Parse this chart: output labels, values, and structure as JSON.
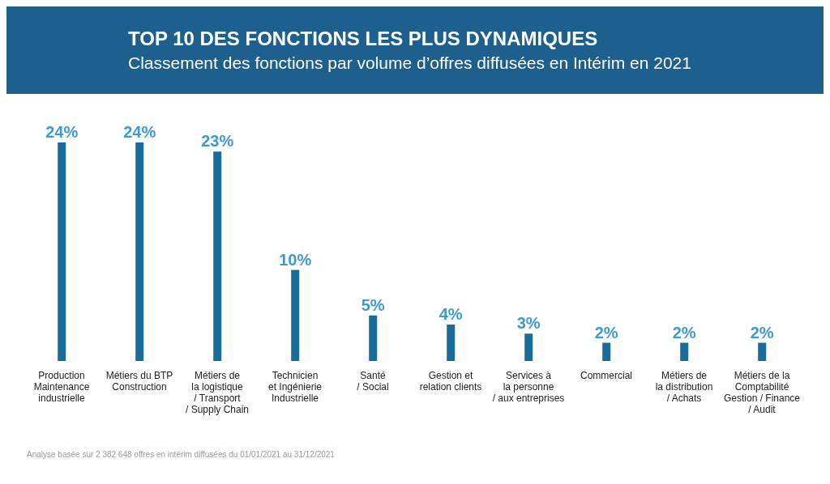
{
  "chart_data": {
    "type": "bar",
    "title": "TOP 10 DES FONCTIONS LES PLUS DYNAMIQUES",
    "subtitle": "Classement des fonctions par volume d’offres diffusées en Intérim en 2021",
    "categories": [
      "Production\nMaintenance\nindustrielle",
      "Métiers du BTP\nConstruction",
      "Métiers de\nla logistique\n/ Transport\n/ Supply Chain",
      "Technicien\net Ingénierie\nIndustrielle",
      "Santé\n/ Social",
      "Gestion et\nrelation clients",
      "Services à\nla personne\n/ aux entreprises",
      "Commercial",
      "Métiers de\nla distribution\n/ Achats",
      "Métiers de la\nComptabilité\nGestion / Finance\n/ Audit"
    ],
    "values": [
      24,
      24,
      23,
      10,
      5,
      4,
      3,
      2,
      2,
      2
    ],
    "value_labels": [
      "24%",
      "24%",
      "23%",
      "10%",
      "5%",
      "4%",
      "3%",
      "2%",
      "2%",
      "2%"
    ],
    "color": "#1a6a9a",
    "annotations": [
      "Analyse basée sur 2 382 648 offres en intérim diffusées du 01/01/2021 au 31/12/2021"
    ]
  }
}
